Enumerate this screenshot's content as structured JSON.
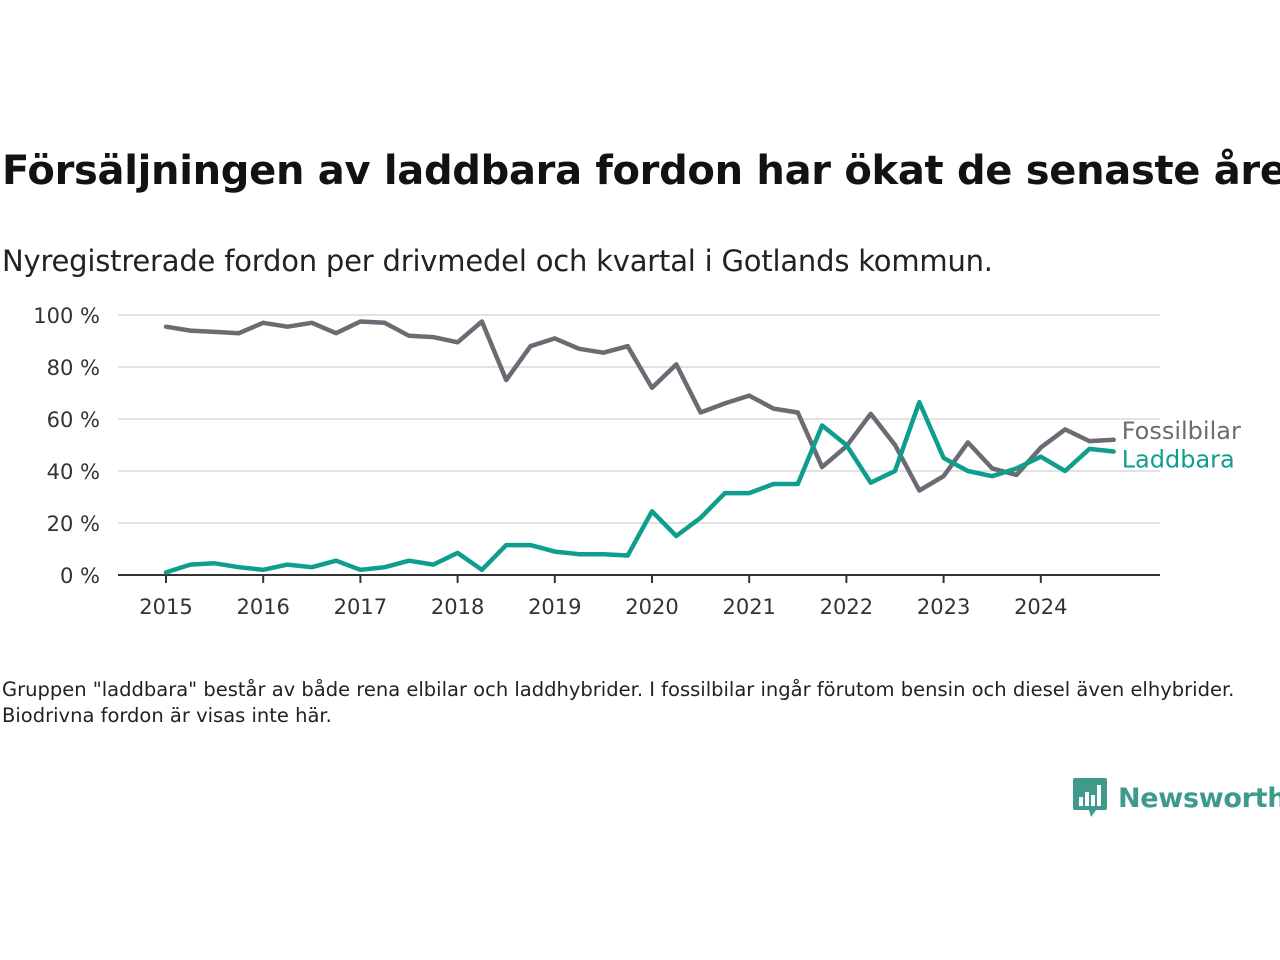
{
  "title": "Försäljningen av laddbara fordon har ökat de senaste åren",
  "subtitle": "Nyregistrerade fordon per drivmedel och kvartal i Gotlands kommun.",
  "footnote": "Gruppen \"laddbara\" består av både rena elbilar och laddhybrider. I fossilbilar ingår förutom bensin och diesel även elhybrider. Biodrivna fordon är visas inte här.",
  "logo": {
    "text": "Newsworthy",
    "icon": "newsworthy-logo-icon",
    "color": "#3f9a8c"
  },
  "chart_data": {
    "type": "line",
    "x": [
      "2015 Q1",
      "2015 Q2",
      "2015 Q3",
      "2015 Q4",
      "2016 Q1",
      "2016 Q2",
      "2016 Q3",
      "2016 Q4",
      "2017 Q1",
      "2017 Q2",
      "2017 Q3",
      "2017 Q4",
      "2018 Q1",
      "2018 Q2",
      "2018 Q3",
      "2018 Q4",
      "2019 Q1",
      "2019 Q2",
      "2019 Q3",
      "2019 Q4",
      "2020 Q1",
      "2020 Q2",
      "2020 Q3",
      "2020 Q4",
      "2021 Q1",
      "2021 Q2",
      "2021 Q3",
      "2021 Q4",
      "2022 Q1",
      "2022 Q2",
      "2022 Q3",
      "2022 Q4",
      "2023 Q1",
      "2023 Q2",
      "2023 Q3",
      "2023 Q4",
      "2024 Q1",
      "2024 Q2",
      "2024 Q3",
      "2024 Q4"
    ],
    "x_tick_labels": [
      "2015",
      "2016",
      "2017",
      "2018",
      "2019",
      "2020",
      "2021",
      "2022",
      "2023",
      "2024"
    ],
    "y_ticks": [
      0,
      20,
      40,
      60,
      80,
      100
    ],
    "y_tick_labels": [
      "0 %",
      "20 %",
      "40 %",
      "60 %",
      "80 %",
      "100 %"
    ],
    "ylim": [
      0,
      100
    ],
    "grid": true,
    "legend": "direct labels at line ends",
    "series": [
      {
        "name": "Fossilbilar",
        "color": "#6b6b73",
        "values": [
          95.5,
          94,
          93.5,
          93,
          97,
          95.5,
          97,
          93,
          97.5,
          97,
          92,
          91.5,
          89.5,
          97.5,
          75,
          88,
          91,
          87,
          85.5,
          88,
          72,
          81,
          62.5,
          66,
          69,
          64,
          62.5,
          41.5,
          49.5,
          62,
          50,
          32.5,
          38,
          51,
          41,
          38.5,
          49,
          56,
          51.5,
          52
        ]
      },
      {
        "name": "Laddbara",
        "color": "#0f9e8e",
        "values": [
          1,
          4,
          4.5,
          3,
          2,
          4,
          3,
          5.5,
          2,
          3,
          5.5,
          4,
          8.5,
          2,
          11.5,
          11.5,
          9,
          8,
          8,
          7.5,
          24.5,
          15,
          22,
          31.5,
          31.5,
          35,
          35,
          57.5,
          50,
          35.5,
          40,
          66.5,
          45,
          40,
          38,
          41,
          45.5,
          40,
          48.5,
          47.5
        ]
      }
    ]
  }
}
